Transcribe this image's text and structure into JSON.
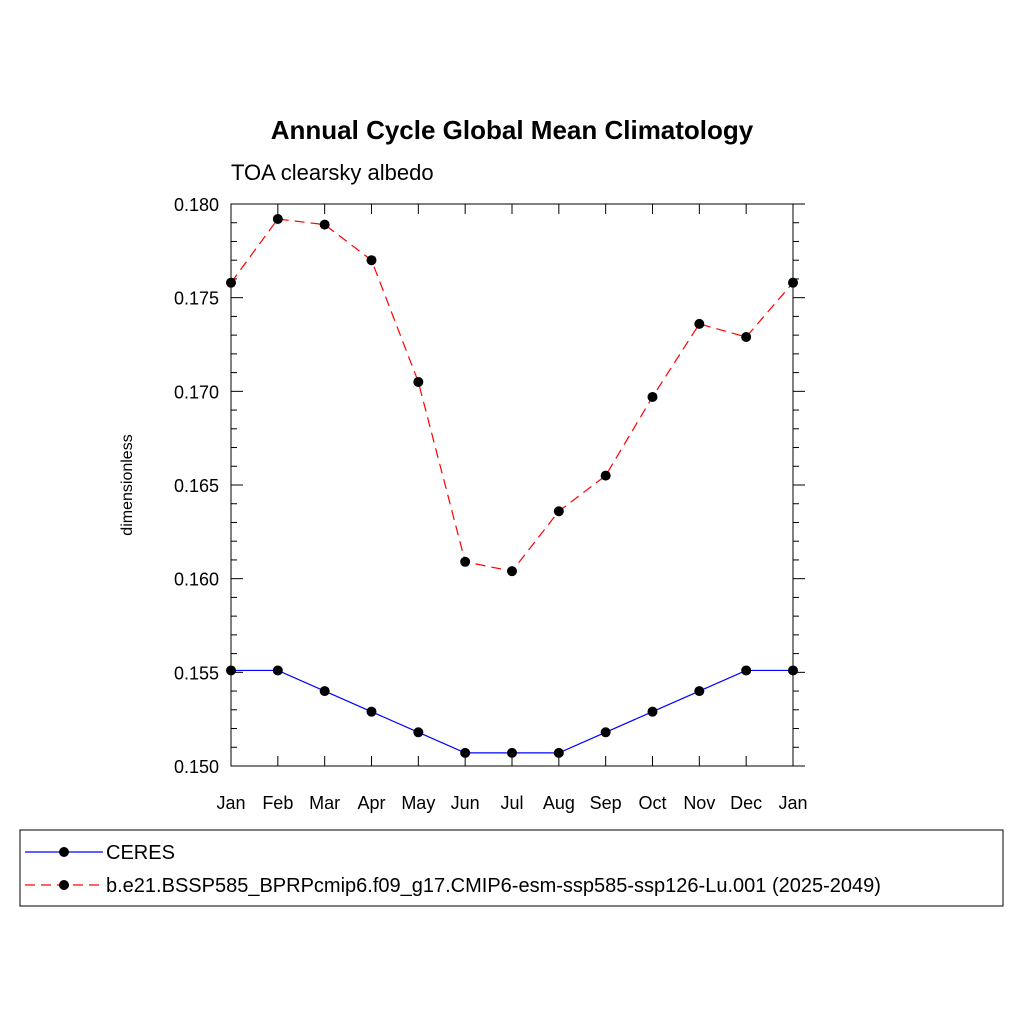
{
  "chart_data": {
    "type": "line",
    "title": "Annual Cycle Global Mean Climatology",
    "subtitle": "TOA clearsky albedo",
    "ylabel": "dimensionless",
    "xlabel": "",
    "categories": [
      "Jan",
      "Feb",
      "Mar",
      "Apr",
      "May",
      "Jun",
      "Jul",
      "Aug",
      "Sep",
      "Oct",
      "Nov",
      "Dec",
      "Jan"
    ],
    "ylim": [
      0.15,
      0.18
    ],
    "yticks": [
      "0.150",
      "0.155",
      "0.160",
      "0.165",
      "0.170",
      "0.175",
      "0.180"
    ],
    "grid": false,
    "legend_position": "bottom",
    "series": [
      {
        "name": "CERES",
        "color": "#0000ff",
        "style": "solid",
        "values": [
          0.1551,
          0.1551,
          0.154,
          0.1529,
          0.1518,
          0.1507,
          0.1507,
          0.1507,
          0.1518,
          0.1529,
          0.154,
          0.1551,
          0.1551
        ]
      },
      {
        "name": "b.e21.BSSP585_BPRPcmip6.f09_g17.CMIP6-esm-ssp585-ssp126-Lu.001 (2025-2049)",
        "color": "#ff0000",
        "style": "dashed",
        "values": [
          0.1758,
          0.1792,
          0.1789,
          0.177,
          0.1705,
          0.1609,
          0.1604,
          0.1636,
          0.1655,
          0.1697,
          0.1736,
          0.1729,
          0.1758
        ]
      }
    ]
  }
}
